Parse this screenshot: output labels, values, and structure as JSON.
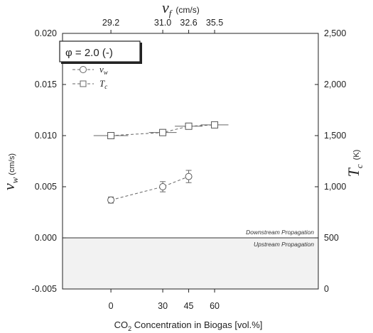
{
  "chart_data": {
    "type": "scatter",
    "categories_x": [
      0,
      30,
      45,
      60
    ],
    "xlabel_prefix": "CO",
    "xlabel_sub": "2",
    "xlabel_suffix": " Concentration in Biogas [vol.%]",
    "xtick_labels": [
      "0",
      "30",
      "45",
      "60"
    ],
    "xlim": [
      -28,
      120
    ],
    "top_axis": {
      "label_symbol": "v",
      "label_sub": "f",
      "label_unit": "(cm/s)",
      "tick_positions": [
        0,
        30,
        45,
        60
      ],
      "tick_labels": [
        "29.2",
        "31.0",
        "32.6",
        "35.5"
      ]
    },
    "left_axis": {
      "label_symbol": "v",
      "label_sub": "w",
      "label_unit": "(cm/s)",
      "ylim": [
        -0.005,
        0.02
      ],
      "ticks": [
        -0.005,
        0.0,
        0.005,
        0.01,
        0.015,
        0.02
      ],
      "tick_labels": [
        "-0.005",
        "0.000",
        "0.005",
        "0.010",
        "0.015",
        "0.020"
      ]
    },
    "right_axis": {
      "label_symbol": "T",
      "label_sub": "c",
      "label_unit": "(K)",
      "ylim": [
        0,
        2500
      ],
      "ticks": [
        0,
        500,
        1000,
        1500,
        2000,
        2500
      ],
      "tick_labels": [
        "0",
        "500",
        "1,000",
        "1,500",
        "2,000",
        "2,500"
      ]
    },
    "series": [
      {
        "name": "v_w",
        "legend_symbol": "v",
        "legend_sub": "w",
        "marker": "circle",
        "axis": "left",
        "x": [
          0,
          30,
          45
        ],
        "y": [
          0.0037,
          0.005,
          0.006
        ],
        "yerr": [
          0.0003,
          0.0005,
          0.0006
        ]
      },
      {
        "name": "T_c",
        "legend_symbol": "T",
        "legend_sub": "c",
        "marker": "square",
        "axis": "right",
        "x": [
          0,
          30,
          45,
          60
        ],
        "y": [
          1500,
          1530,
          1592,
          1605
        ],
        "yerr": [
          30,
          30,
          30,
          25
        ],
        "xerr": [
          10,
          8,
          8,
          8
        ]
      }
    ],
    "boxed_annotation": "φ = 2.0 (-)",
    "zero_line_labels": {
      "above": "Downstream Propagation",
      "below": "Upstream Propagation"
    },
    "shaded_region": "below zero on left axis",
    "grid": false,
    "legend_placement": "top-left"
  }
}
